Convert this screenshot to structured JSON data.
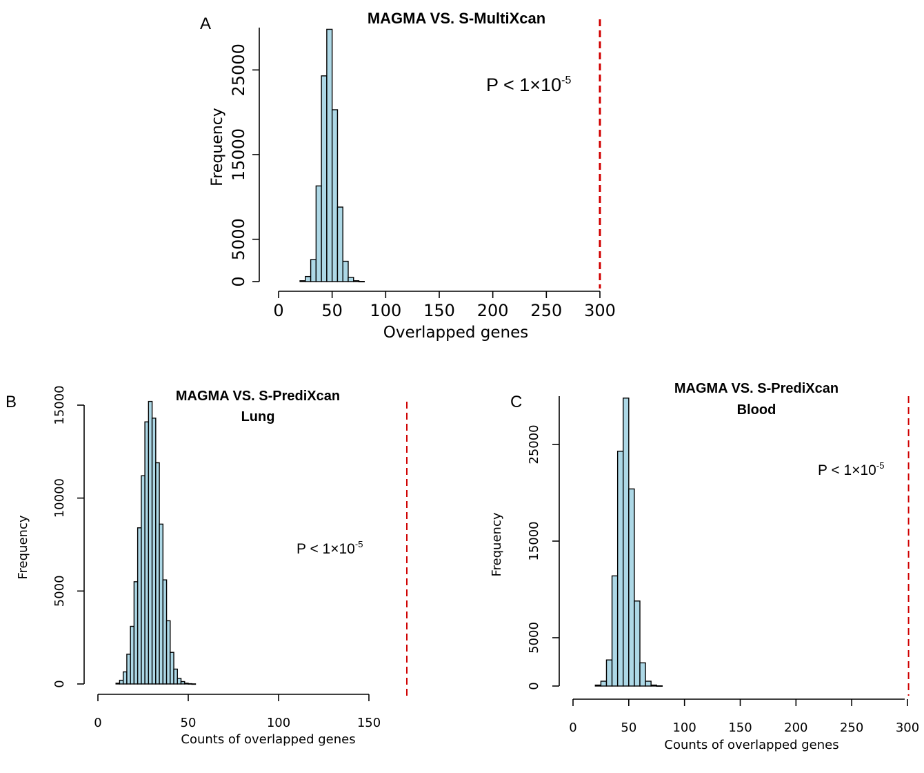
{
  "chart_data": [
    {
      "panel": "A",
      "type": "bar",
      "title": "MAGMA VS. S-MultiXcan",
      "subtitle": "",
      "xlabel": "Overlapped genes",
      "ylabel": "Frequency",
      "xlim": [
        0,
        300
      ],
      "ylim": [
        0,
        30000
      ],
      "x_ticks": [
        0,
        50,
        100,
        150,
        200,
        250,
        300
      ],
      "y_ticks": [
        0,
        5000,
        15000,
        25000
      ],
      "bin_width": 5,
      "bins_start": [
        20,
        25,
        30,
        35,
        40,
        45,
        50,
        55,
        60,
        65,
        70,
        75
      ],
      "values": [
        100,
        600,
        2600,
        11300,
        24300,
        29800,
        20300,
        8800,
        2400,
        500,
        100,
        20
      ],
      "reference_line_x": 300,
      "annotation": {
        "prefix": "P < 1×10",
        "exponent": "-5"
      }
    },
    {
      "panel": "B",
      "type": "bar",
      "title": "MAGMA VS. S-PrediXcan",
      "subtitle": "Lung",
      "xlabel": "Counts of overlapped genes",
      "ylabel": "Frequency",
      "xlim": [
        0,
        150
      ],
      "ylim": [
        0,
        15000
      ],
      "x_ticks": [
        0,
        50,
        100,
        150
      ],
      "y_ticks": [
        0,
        5000,
        10000,
        15000
      ],
      "bin_width": 2,
      "bins_start": [
        10,
        12,
        14,
        16,
        18,
        20,
        22,
        24,
        26,
        28,
        30,
        32,
        34,
        36,
        38,
        40,
        42,
        44,
        46,
        48,
        50,
        52
      ],
      "values": [
        40,
        200,
        650,
        1600,
        3100,
        5500,
        8400,
        11200,
        14100,
        15200,
        14300,
        11900,
        8600,
        5600,
        3400,
        1700,
        800,
        300,
        130,
        40,
        15,
        5
      ],
      "reference_line_x": 171,
      "annotation": {
        "prefix": "P < 1×10",
        "exponent": "-5"
      }
    },
    {
      "panel": "C",
      "type": "bar",
      "title": "MAGMA VS. S-PrediXcan",
      "subtitle": "Blood",
      "xlabel": "Counts of overlapped genes",
      "ylabel": "Frequency",
      "xlim": [
        0,
        300
      ],
      "ylim": [
        0,
        30000
      ],
      "x_ticks": [
        0,
        50,
        100,
        150,
        200,
        250,
        300
      ],
      "y_ticks": [
        0,
        5000,
        15000,
        25000
      ],
      "bin_width": 5,
      "bins_start": [
        20,
        25,
        30,
        35,
        40,
        45,
        50,
        55,
        60,
        65,
        70,
        75
      ],
      "values": [
        100,
        500,
        2700,
        11400,
        24300,
        29800,
        20400,
        8800,
        2400,
        500,
        100,
        20
      ],
      "reference_line_x": 301,
      "annotation": {
        "prefix": "P < 1×10",
        "exponent": "-5"
      }
    }
  ],
  "colors": {
    "bar_fill": "#add8e6",
    "bar_stroke": "#000000",
    "reference_line": "#d00000"
  }
}
